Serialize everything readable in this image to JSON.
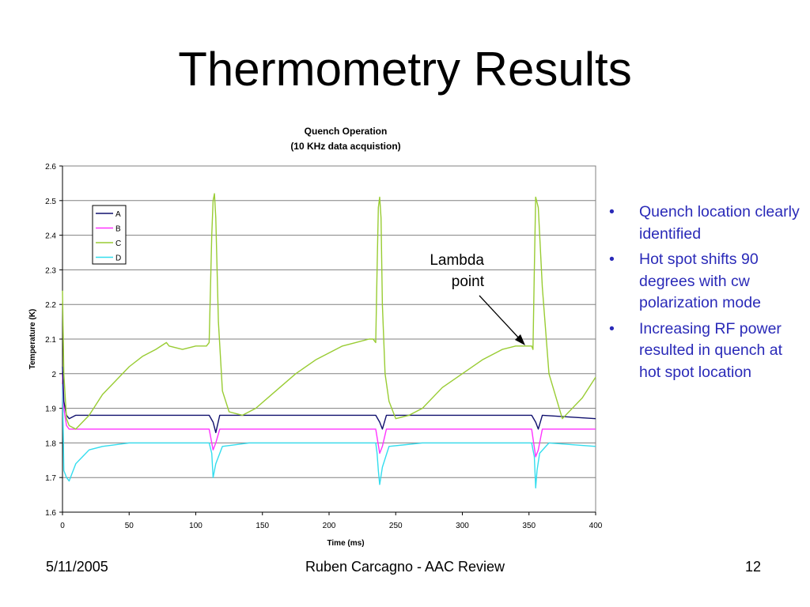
{
  "slide": {
    "title": "Thermometry Results",
    "bullets": [
      "Quench location clearly identified",
      "Hot spot shifts 90 degrees with cw polarization mode",
      "Increasing RF power resulted in quench at hot spot location"
    ],
    "footer": {
      "date": "5/11/2005",
      "center": "Ruben Carcagno - AAC Review",
      "page": "12"
    },
    "annotation": {
      "line1": "Lambda",
      "line2": "point"
    }
  },
  "colors": {
    "A": "#10106e",
    "B": "#ff33ff",
    "C": "#99cc33",
    "D": "#33ddee",
    "bullet_text": "#2a2ab8"
  },
  "chart_data": {
    "type": "line",
    "title": "Quench Operation",
    "subtitle": "(10 KHz data acquistion)",
    "xlabel": "Time (ms)",
    "ylabel": "Temperature (K)",
    "xlim": [
      0,
      400
    ],
    "ylim": [
      1.6,
      2.6
    ],
    "xticks": [
      "0",
      "50",
      "100",
      "150",
      "200",
      "250",
      "300",
      "350",
      "400"
    ],
    "yticks": [
      "1.6",
      "1.7",
      "1.8",
      "1.9",
      "2",
      "2.1",
      "2.2",
      "2.3",
      "2.4",
      "2.5",
      "2.6"
    ],
    "grid": true,
    "legend_position": "top-left",
    "series": [
      {
        "name": "A",
        "color": "#10106e",
        "x": [
          0,
          1,
          3,
          5,
          10,
          50,
          110,
          113,
          115,
          118,
          140,
          200,
          235,
          238,
          240,
          243,
          270,
          340,
          352,
          355,
          357,
          360,
          400
        ],
        "y": [
          2.02,
          1.92,
          1.88,
          1.87,
          1.88,
          1.88,
          1.88,
          1.86,
          1.83,
          1.88,
          1.88,
          1.88,
          1.88,
          1.86,
          1.84,
          1.88,
          1.88,
          1.88,
          1.88,
          1.86,
          1.84,
          1.88,
          1.87
        ]
      },
      {
        "name": "B",
        "color": "#ff33ff",
        "x": [
          0,
          1,
          3,
          5,
          10,
          50,
          110,
          113,
          115,
          118,
          140,
          200,
          235,
          238,
          240,
          243,
          270,
          340,
          352,
          355,
          357,
          360,
          400
        ],
        "y": [
          2.0,
          1.9,
          1.85,
          1.84,
          1.84,
          1.84,
          1.84,
          1.78,
          1.8,
          1.84,
          1.84,
          1.84,
          1.84,
          1.77,
          1.79,
          1.84,
          1.84,
          1.84,
          1.84,
          1.76,
          1.78,
          1.84,
          1.84
        ]
      },
      {
        "name": "C",
        "color": "#99cc33",
        "x": [
          0,
          1,
          3,
          5,
          10,
          20,
          30,
          40,
          50,
          60,
          70,
          78,
          80,
          90,
          100,
          108,
          110,
          112,
          113,
          114,
          115,
          117,
          120,
          125,
          135,
          145,
          160,
          175,
          190,
          200,
          210,
          220,
          230,
          233,
          235,
          236,
          237,
          238,
          239,
          240,
          242,
          245,
          250,
          260,
          270,
          285,
          300,
          315,
          330,
          340,
          348,
          350,
          352,
          353,
          354,
          355,
          357,
          360,
          365,
          375,
          390,
          400
        ],
        "y": [
          2.24,
          2.0,
          1.87,
          1.85,
          1.84,
          1.88,
          1.94,
          1.98,
          2.02,
          2.05,
          2.07,
          2.09,
          2.08,
          2.07,
          2.08,
          2.08,
          2.09,
          2.4,
          2.5,
          2.52,
          2.45,
          2.15,
          1.95,
          1.89,
          1.88,
          1.9,
          1.95,
          2.0,
          2.04,
          2.06,
          2.08,
          2.09,
          2.1,
          2.1,
          2.09,
          2.3,
          2.48,
          2.51,
          2.45,
          2.2,
          2.0,
          1.92,
          1.87,
          1.88,
          1.9,
          1.96,
          2.0,
          2.04,
          2.07,
          2.08,
          2.08,
          2.08,
          2.08,
          2.07,
          2.3,
          2.51,
          2.48,
          2.25,
          2.0,
          1.87,
          1.93,
          1.99
        ]
      },
      {
        "name": "D",
        "color": "#33ddee",
        "x": [
          0,
          1,
          3,
          5,
          10,
          15,
          20,
          30,
          50,
          110,
          112,
          113,
          115,
          120,
          140,
          200,
          235,
          236,
          237,
          238,
          240,
          245,
          270,
          340,
          352,
          354,
          355,
          356,
          358,
          365,
          400
        ],
        "y": [
          1.97,
          1.72,
          1.7,
          1.69,
          1.74,
          1.76,
          1.78,
          1.79,
          1.8,
          1.8,
          1.77,
          1.7,
          1.74,
          1.79,
          1.8,
          1.8,
          1.8,
          1.77,
          1.72,
          1.68,
          1.73,
          1.79,
          1.8,
          1.8,
          1.8,
          1.76,
          1.67,
          1.72,
          1.77,
          1.8,
          1.79
        ]
      }
    ]
  }
}
